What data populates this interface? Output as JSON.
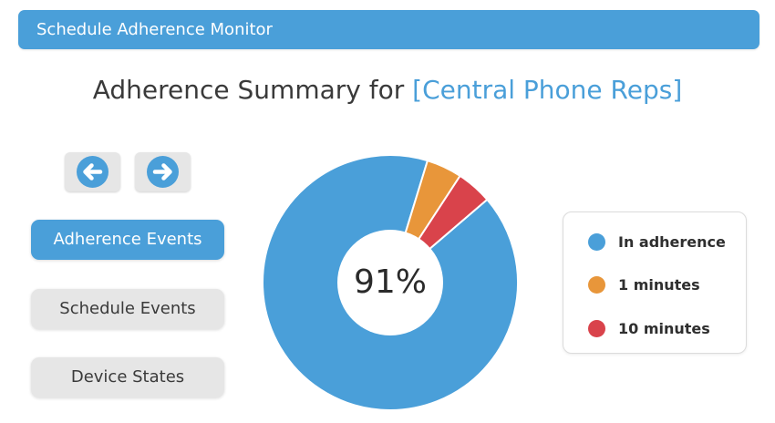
{
  "window": {
    "title": "Schedule Adherence Monitor"
  },
  "header": {
    "prefix": "Adherence Summary for ",
    "group": "[Central Phone Reps]"
  },
  "nav": {
    "back_icon": "arrow-left-icon",
    "forward_icon": "arrow-right-icon"
  },
  "sidebar": {
    "items": [
      {
        "label": "Adherence Events",
        "active": true
      },
      {
        "label": "Schedule Events",
        "active": false
      },
      {
        "label": "Device States",
        "active": false
      }
    ]
  },
  "colors": {
    "accent": "#4a9fd9",
    "in_adherence": "#4a9fd9",
    "one_minute": "#e8963a",
    "ten_minutes": "#d9434b"
  },
  "chart_data": {
    "type": "pie",
    "center_label": "91%",
    "labels": [
      "In adherence",
      "1 minutes",
      "10 minutes"
    ],
    "values": [
      91,
      4.5,
      4.5
    ],
    "colors": [
      "#4a9fd9",
      "#e8963a",
      "#d9434b"
    ],
    "legend_position": "right"
  }
}
